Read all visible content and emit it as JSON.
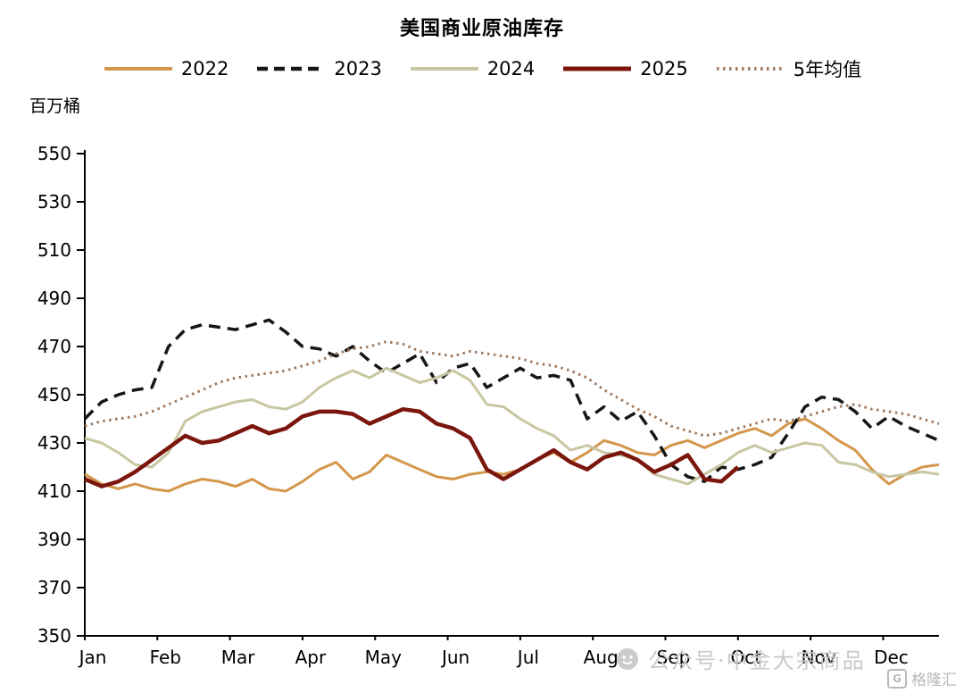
{
  "title": "美国商业原油库存",
  "unit_label": "百万桶",
  "watermark": {
    "text": "公众号·中金大宗商品",
    "logo_text": "格隆汇"
  },
  "chart_data": {
    "type": "line",
    "title": "美国商业原油库存",
    "xlabel": "",
    "ylabel": "百万桶",
    "ylim": [
      350,
      550
    ],
    "yticks": [
      350,
      370,
      390,
      410,
      430,
      450,
      470,
      490,
      510,
      530,
      550
    ],
    "x_categories": [
      "Jan",
      "Feb",
      "Mar",
      "Apr",
      "May",
      "Jun",
      "Jul",
      "Aug",
      "Sep",
      "Oct",
      "Nov",
      "Dec"
    ],
    "weeks_per_year": 52,
    "grid": false,
    "legend_position": "top",
    "series": [
      {
        "name": "2022",
        "color": "#D4964B",
        "style": "solid",
        "width": 3,
        "values": [
          417,
          413,
          411,
          413,
          411,
          410,
          413,
          415,
          414,
          412,
          415,
          411,
          410,
          414,
          419,
          422,
          415,
          418,
          425,
          422,
          419,
          416,
          415,
          417,
          418,
          417,
          419,
          423,
          426,
          422,
          426,
          431,
          429,
          426,
          425,
          429,
          431,
          428,
          431,
          434,
          436,
          433,
          438,
          440,
          436,
          431,
          427,
          419,
          413,
          417,
          420,
          421
        ]
      },
      {
        "name": "2023",
        "color": "#161616",
        "style": "dashed",
        "width": 3.5,
        "values": [
          440,
          447,
          450,
          452,
          453,
          470,
          477,
          479,
          478,
          477,
          479,
          481,
          476,
          470,
          469,
          466,
          470,
          464,
          459,
          463,
          467,
          455,
          461,
          463,
          453,
          457,
          461,
          457,
          458,
          456,
          440,
          445,
          439,
          443,
          433,
          421,
          416,
          414,
          420,
          419,
          421,
          424,
          434,
          445,
          449,
          448,
          443,
          436,
          441,
          437,
          434,
          431
        ]
      },
      {
        "name": "2024",
        "color": "#C9C6A2",
        "style": "solid",
        "width": 3,
        "values": [
          432,
          430,
          426,
          421,
          420,
          426,
          439,
          443,
          445,
          447,
          448,
          445,
          444,
          447,
          453,
          457,
          460,
          457,
          461,
          458,
          455,
          457,
          460,
          456,
          446,
          445,
          440,
          436,
          433,
          427,
          429,
          426,
          425,
          423,
          417,
          415,
          413,
          417,
          421,
          426,
          429,
          426,
          428,
          430,
          429,
          422,
          421,
          418,
          416,
          417,
          418,
          417
        ]
      },
      {
        "name": "2025",
        "color": "#7B160D",
        "style": "solid",
        "width": 4.5,
        "values": [
          415,
          412,
          414,
          418,
          423,
          428,
          433,
          430,
          431,
          434,
          437,
          434,
          436,
          441,
          443,
          443,
          442,
          438,
          441,
          444,
          443,
          438,
          436,
          432,
          419,
          415,
          419,
          423,
          427,
          422,
          419,
          424,
          426,
          423,
          418,
          421,
          425,
          415,
          414,
          420
        ]
      },
      {
        "name": "5年均值",
        "color": "#9F7A60",
        "style": "dotted",
        "width": 3,
        "values": [
          437,
          439,
          440,
          441,
          443,
          446,
          449,
          452,
          455,
          457,
          458,
          459,
          460,
          462,
          464,
          467,
          469,
          470,
          472,
          471,
          468,
          467,
          466,
          468,
          467,
          466,
          465,
          463,
          462,
          460,
          457,
          452,
          448,
          444,
          441,
          437,
          435,
          433,
          434,
          436,
          438,
          440,
          439,
          441,
          443,
          445,
          446,
          444,
          443,
          442,
          440,
          438
        ]
      }
    ]
  }
}
